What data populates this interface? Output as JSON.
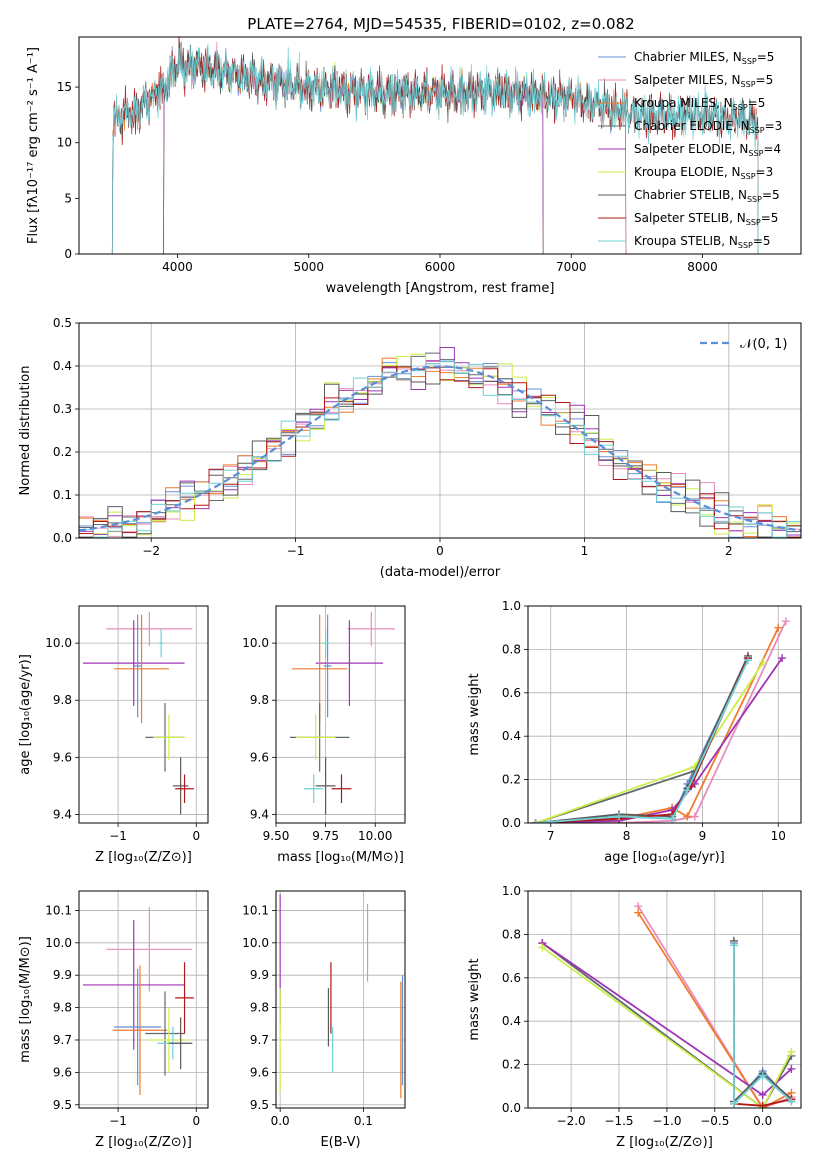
{
  "figure": {
    "title": "PLATE=2764, MJD=54535, FIBERID=0102, z=0.082"
  },
  "series_colors": {
    "Chabrier MILES": "#6a8fd8",
    "Salpeter MILES": "#e88cbd",
    "Kroupa MILES": "#f07c2c",
    "Chabrier ELODIE": "#5f6a6f",
    "Salpeter ELODIE": "#9f35b5",
    "Kroupa ELODIE": "#cdee4a",
    "Chabrier STELIB": "#5a5a5a",
    "Salpeter STELIB": "#b01818",
    "Kroupa STELIB": "#6fd1d6"
  },
  "chart_data": [
    {
      "type": "line",
      "panel": "spectrum",
      "xlabel": "wavelength [Angstrom, rest frame]",
      "ylabel": "Flux [fλ10⁻¹⁷ erg cm⁻² s⁻¹ A⁻¹]",
      "xlim": [
        3250,
        8750
      ],
      "ylim": [
        0,
        19.5
      ],
      "xticks": [
        4000,
        5000,
        6000,
        7000,
        8000
      ],
      "yticks": [
        0,
        5,
        10,
        15
      ],
      "legend_position": "upper-right",
      "legend": [
        {
          "main": "Chabrier MILES, N",
          "sub": "SSP",
          "suffix": "=5",
          "series": "Chabrier MILES"
        },
        {
          "main": "Salpeter MILES, N",
          "sub": "SSP",
          "suffix": "=5",
          "series": "Salpeter MILES"
        },
        {
          "main": "Kroupa MILES, N",
          "sub": "SSP",
          "suffix": "=5",
          "series": "Kroupa MILES"
        },
        {
          "main": "Chabrier ELODIE, N",
          "sub": "SSP",
          "suffix": "=3",
          "series": "Chabrier ELODIE"
        },
        {
          "main": "Salpeter ELODIE, N",
          "sub": "SSP",
          "suffix": "=4",
          "series": "Salpeter ELODIE"
        },
        {
          "main": "Kroupa ELODIE, N",
          "sub": "SSP",
          "suffix": "=3",
          "series": "Kroupa ELODIE"
        },
        {
          "main": "Chabrier STELIB, N",
          "sub": "SSP",
          "suffix": "=5",
          "series": "Chabrier STELIB"
        },
        {
          "main": "Salpeter STELIB, N",
          "sub": "SSP",
          "suffix": "=5",
          "series": "Salpeter STELIB"
        },
        {
          "main": "Kroupa STELIB, N",
          "sub": "SSP",
          "suffix": "=5",
          "series": "Kroupa STELIB"
        }
      ],
      "continuum_shape": {
        "x": [
          3500,
          3700,
          3900,
          4000,
          4200,
          4500,
          5000,
          5500,
          6000,
          6500,
          7000,
          7500,
          8000,
          8400
        ],
        "y": [
          12,
          13,
          15,
          17,
          16.8,
          16,
          15,
          14.5,
          14.5,
          14.5,
          14,
          12.5,
          12.5,
          12
        ]
      },
      "noise_amplitude": 2.2,
      "data_ranges": {
        "Chabrier MILES": [
          3500,
          7420
        ],
        "Salpeter MILES": [
          3500,
          7420
        ],
        "Kroupa MILES": [
          3500,
          7420
        ],
        "Chabrier ELODIE": [
          3890,
          6790
        ],
        "Salpeter ELODIE": [
          3890,
          6790
        ],
        "Kroupa ELODIE": [
          3890,
          6790
        ],
        "Chabrier STELIB": [
          3500,
          8430
        ],
        "Salpeter STELIB": [
          3500,
          8430
        ],
        "Kroupa STELIB": [
          3500,
          8430
        ]
      }
    },
    {
      "type": "bar",
      "panel": "residual-histogram",
      "xlabel": "(data-model)/error",
      "ylabel": "Normed distribution",
      "xlim": [
        -2.5,
        2.5
      ],
      "ylim": [
        0,
        0.5
      ],
      "xticks": [
        -2,
        -1,
        0,
        1,
        2
      ],
      "yticks": [
        0.0,
        0.1,
        0.2,
        0.3,
        0.4,
        0.5
      ],
      "bin_width": 0.1,
      "legend": "𝒩(0, 1)",
      "legend_position": "upper-right",
      "reference_curve": "normal(0,1)",
      "reference_color": "#5b8ed9",
      "histogram_scatter": 0.035
    },
    {
      "type": "scatter",
      "panel": "age-vs-Z",
      "xlabel": "Z [log₁₀(Z/Z⊙)]",
      "ylabel": "age  [log₁₀(age/yr)]",
      "xlim": [
        -1.5,
        0.15
      ],
      "ylim": [
        9.37,
        10.13
      ],
      "xticks": [
        -1,
        0
      ],
      "yticks": [
        9.4,
        9.6,
        9.8,
        10.0
      ],
      "points": [
        {
          "series": "Salpeter MILES",
          "x": -0.6,
          "y": 10.05,
          "xerr": 0.55,
          "yerr": 0.06
        },
        {
          "series": "Salpeter ELODIE",
          "x": -0.8,
          "y": 9.93,
          "xerr": 0.65,
          "yerr": 0.15
        },
        {
          "series": "Chabrier MILES",
          "x": -0.75,
          "y": 9.92,
          "xerr": 0.05,
          "yerr": 0.18
        },
        {
          "series": "Kroupa MILES",
          "x": -0.7,
          "y": 9.91,
          "xerr": 0.35,
          "yerr": 0.19
        },
        {
          "series": "Kroupa STELIB",
          "x": -0.45,
          "y": 10.0,
          "xerr": 0.03,
          "yerr": 0.05
        },
        {
          "series": "Chabrier ELODIE",
          "x": -0.4,
          "y": 9.67,
          "xerr": 0.25,
          "yerr": 0.12
        },
        {
          "series": "Kroupa ELODIE",
          "x": -0.35,
          "y": 9.67,
          "xerr": 0.2,
          "yerr": 0.08
        },
        {
          "series": "Chabrier STELIB",
          "x": -0.2,
          "y": 9.5,
          "xerr": 0.1,
          "yerr": 0.1
        },
        {
          "series": "Salpeter STELIB",
          "x": -0.15,
          "y": 9.49,
          "xerr": 0.12,
          "yerr": 0.05
        }
      ]
    },
    {
      "type": "scatter",
      "panel": "age-vs-mass",
      "xlabel": "mass [log₁₀(M/M⊙)]",
      "ylabel": "",
      "xlim": [
        9.5,
        10.15
      ],
      "ylim": [
        9.37,
        10.13
      ],
      "xticks": [
        9.5,
        9.75,
        10.0
      ],
      "yticks": [
        9.4,
        9.6,
        9.8,
        10.0
      ],
      "points": [
        {
          "series": "Salpeter MILES",
          "x": 9.98,
          "y": 10.05,
          "xerr": 0.12,
          "yerr": 0.06
        },
        {
          "series": "Salpeter ELODIE",
          "x": 9.87,
          "y": 9.93,
          "xerr": 0.17,
          "yerr": 0.15
        },
        {
          "series": "Chabrier MILES",
          "x": 9.76,
          "y": 9.92,
          "xerr": 0.02,
          "yerr": 0.18
        },
        {
          "series": "Kroupa MILES",
          "x": 9.72,
          "y": 9.91,
          "xerr": 0.14,
          "yerr": 0.19
        },
        {
          "series": "Kroupa STELIB",
          "x": 9.75,
          "y": 10.0,
          "xerr": 0.02,
          "yerr": 0.05
        },
        {
          "series": "Chabrier ELODIE",
          "x": 9.72,
          "y": 9.67,
          "xerr": 0.15,
          "yerr": 0.12
        },
        {
          "series": "Kroupa ELODIE",
          "x": 9.7,
          "y": 9.67,
          "xerr": 0.1,
          "yerr": 0.08
        },
        {
          "series": "Chabrier STELIB",
          "x": 9.75,
          "y": 9.5,
          "xerr": 0.05,
          "yerr": 0.1
        },
        {
          "series": "Salpeter STELIB",
          "x": 9.83,
          "y": 9.49,
          "xerr": 0.05,
          "yerr": 0.05
        },
        {
          "series": "Kroupa STELIB",
          "x": 9.69,
          "y": 9.49,
          "xerr": 0.05,
          "yerr": 0.05
        }
      ]
    },
    {
      "type": "line",
      "panel": "mass-weight-vs-age",
      "xlabel": "age  [log₁₀(age/yr)]",
      "ylabel": "mass weight",
      "xlim": [
        6.7,
        10.3
      ],
      "ylim": [
        0,
        1.0
      ],
      "xticks": [
        7,
        8,
        9,
        10
      ],
      "yticks": [
        0.0,
        0.2,
        0.4,
        0.6,
        0.8,
        1.0
      ],
      "series": [
        {
          "name": "Chabrier MILES",
          "x": [
            6.8,
            7.9,
            8.6,
            8.8,
            9.6
          ],
          "y": [
            0.0,
            0.03,
            0.02,
            0.18,
            0.76
          ]
        },
        {
          "name": "Salpeter MILES",
          "x": [
            6.8,
            7.9,
            8.6,
            8.9,
            10.1
          ],
          "y": [
            0.0,
            0.0,
            0.01,
            0.03,
            0.93
          ]
        },
        {
          "name": "Kroupa MILES",
          "x": [
            6.8,
            7.9,
            8.6,
            8.8,
            10.0
          ],
          "y": [
            0.0,
            0.02,
            0.07,
            0.03,
            0.9
          ]
        },
        {
          "name": "Chabrier ELODIE",
          "x": [
            6.8,
            8.9,
            9.6
          ],
          "y": [
            0.0,
            0.24,
            0.76
          ]
        },
        {
          "name": "Salpeter ELODIE",
          "x": [
            6.8,
            7.9,
            8.6,
            8.9,
            10.05
          ],
          "y": [
            0.0,
            0.01,
            0.06,
            0.18,
            0.76
          ]
        },
        {
          "name": "Kroupa ELODIE",
          "x": [
            6.8,
            8.9,
            9.8
          ],
          "y": [
            0.0,
            0.26,
            0.74
          ]
        },
        {
          "name": "Chabrier STELIB",
          "x": [
            6.8,
            7.9,
            8.6,
            8.8,
            9.6
          ],
          "y": [
            0.0,
            0.04,
            0.03,
            0.16,
            0.77
          ]
        },
        {
          "name": "Salpeter STELIB",
          "x": [
            6.8,
            7.9,
            8.6,
            8.85,
            9.6
          ],
          "y": [
            0.0,
            0.02,
            0.04,
            0.17,
            0.76
          ]
        },
        {
          "name": "Kroupa STELIB",
          "x": [
            6.8,
            7.9,
            8.6,
            8.8,
            9.6
          ],
          "y": [
            0.0,
            0.03,
            0.02,
            0.15,
            0.75
          ]
        }
      ]
    },
    {
      "type": "scatter",
      "panel": "mass-vs-Z",
      "xlabel": "Z [log₁₀(Z/Z⊙)]",
      "ylabel": "mass [log₁₀(M/M⊙)]",
      "xlim": [
        -1.5,
        0.15
      ],
      "ylim": [
        9.49,
        10.16
      ],
      "xticks": [
        -1,
        0
      ],
      "yticks": [
        9.5,
        9.6,
        9.7,
        9.8,
        9.9,
        10.0,
        10.1
      ],
      "points": [
        {
          "series": "Salpeter MILES",
          "x": -0.6,
          "y": 9.98,
          "xerr": 0.55,
          "yerr": 0.13
        },
        {
          "series": "Salpeter ELODIE",
          "x": -0.8,
          "y": 9.87,
          "xerr": 0.65,
          "yerr": 0.2
        },
        {
          "series": "Chabrier MILES",
          "x": -0.75,
          "y": 9.74,
          "xerr": 0.3,
          "yerr": 0.18
        },
        {
          "series": "Kroupa MILES",
          "x": -0.72,
          "y": 9.73,
          "xerr": 0.35,
          "yerr": 0.2
        },
        {
          "series": "Chabrier ELODIE",
          "x": -0.4,
          "y": 9.72,
          "xerr": 0.25,
          "yerr": 0.13
        },
        {
          "series": "Kroupa ELODIE",
          "x": -0.35,
          "y": 9.7,
          "xerr": 0.25,
          "yerr": 0.1
        },
        {
          "series": "Kroupa STELIB",
          "x": -0.3,
          "y": 9.69,
          "xerr": 0.2,
          "yerr": 0.05
        },
        {
          "series": "Salpeter STELIB",
          "x": -0.15,
          "y": 9.83,
          "xerr": 0.12,
          "yerr": 0.11
        },
        {
          "series": "Chabrier STELIB",
          "x": -0.2,
          "y": 9.69,
          "xerr": 0.15,
          "yerr": 0.08
        }
      ]
    },
    {
      "type": "scatter",
      "panel": "mass-vs-EBV",
      "xlabel": "E(B-V)",
      "ylabel": "",
      "xlim": [
        -0.005,
        0.15
      ],
      "ylim": [
        9.49,
        10.16
      ],
      "xticks": [
        0.0,
        0.1
      ],
      "yticks": [
        9.5,
        9.6,
        9.7,
        9.8,
        9.9,
        10.0,
        10.1
      ],
      "points": [
        {
          "series": "Salpeter ELODIE",
          "x": 0.0,
          "y": 9.95,
          "xerr": 0,
          "yerr": 0.2
        },
        {
          "series": "Kroupa ELODIE",
          "x": 0.0,
          "y": 9.7,
          "xerr": 0,
          "yerr": 0.16
        },
        {
          "series": "Chabrier STELIB",
          "x": 0.058,
          "y": 9.77,
          "xerr": 0,
          "yerr": 0.09
        },
        {
          "series": "Salpeter STELIB",
          "x": 0.061,
          "y": 9.83,
          "xerr": 0,
          "yerr": 0.11
        },
        {
          "series": "Kroupa STELIB",
          "x": 0.063,
          "y": 9.67,
          "xerr": 0,
          "yerr": 0.07
        },
        {
          "series": "Salpeter MILES",
          "x": 0.105,
          "y": 10.0,
          "xerr": 0,
          "yerr": 0.12
        },
        {
          "series": "Kroupa MILES",
          "x": 0.145,
          "y": 9.7,
          "xerr": 0,
          "yerr": 0.18
        },
        {
          "series": "Chabrier MILES",
          "x": 0.147,
          "y": 9.73,
          "xerr": 0,
          "yerr": 0.17
        }
      ]
    },
    {
      "type": "line",
      "panel": "mass-weight-vs-Z",
      "xlabel": "Z [log₁₀(Z/Z⊙)]",
      "ylabel": "mass weight",
      "xlim": [
        -2.45,
        0.4
      ],
      "ylim": [
        0,
        1.0
      ],
      "xticks": [
        -2.0,
        -1.5,
        -1.0,
        -0.5,
        0.0
      ],
      "yticks": [
        0.0,
        0.2,
        0.4,
        0.6,
        0.8,
        1.0
      ],
      "series": [
        {
          "name": "Chabrier MILES",
          "x": [
            -0.3,
            -0.3,
            0.0,
            0.3
          ],
          "y": [
            0.76,
            0.02,
            0.17,
            0.03
          ]
        },
        {
          "name": "Salpeter MILES",
          "x": [
            -1.3,
            0.0,
            0.3
          ],
          "y": [
            0.93,
            0.0,
            0.05
          ]
        },
        {
          "name": "Kroupa MILES",
          "x": [
            -1.3,
            0.0,
            0.3
          ],
          "y": [
            0.9,
            0.0,
            0.07
          ]
        },
        {
          "name": "Chabrier ELODIE",
          "x": [
            -2.3,
            0.0,
            0.3
          ],
          "y": [
            0.76,
            0.0,
            0.24
          ]
        },
        {
          "name": "Salpeter ELODIE",
          "x": [
            -2.3,
            0.0,
            0.3
          ],
          "y": [
            0.76,
            0.06,
            0.18
          ]
        },
        {
          "name": "Kroupa ELODIE",
          "x": [
            -2.3,
            0.0,
            0.3
          ],
          "y": [
            0.74,
            0.0,
            0.26
          ]
        },
        {
          "name": "Chabrier STELIB",
          "x": [
            -0.3,
            -0.3,
            0.0,
            0.3
          ],
          "y": [
            0.77,
            0.03,
            0.16,
            0.04
          ]
        },
        {
          "name": "Salpeter STELIB",
          "x": [
            -0.3,
            0.0,
            0.3
          ],
          "y": [
            0.02,
            0.01,
            0.04
          ]
        },
        {
          "name": "Kroupa STELIB",
          "x": [
            -0.3,
            -0.3,
            0.0,
            0.3
          ],
          "y": [
            0.75,
            0.02,
            0.15,
            0.03
          ]
        }
      ]
    }
  ]
}
